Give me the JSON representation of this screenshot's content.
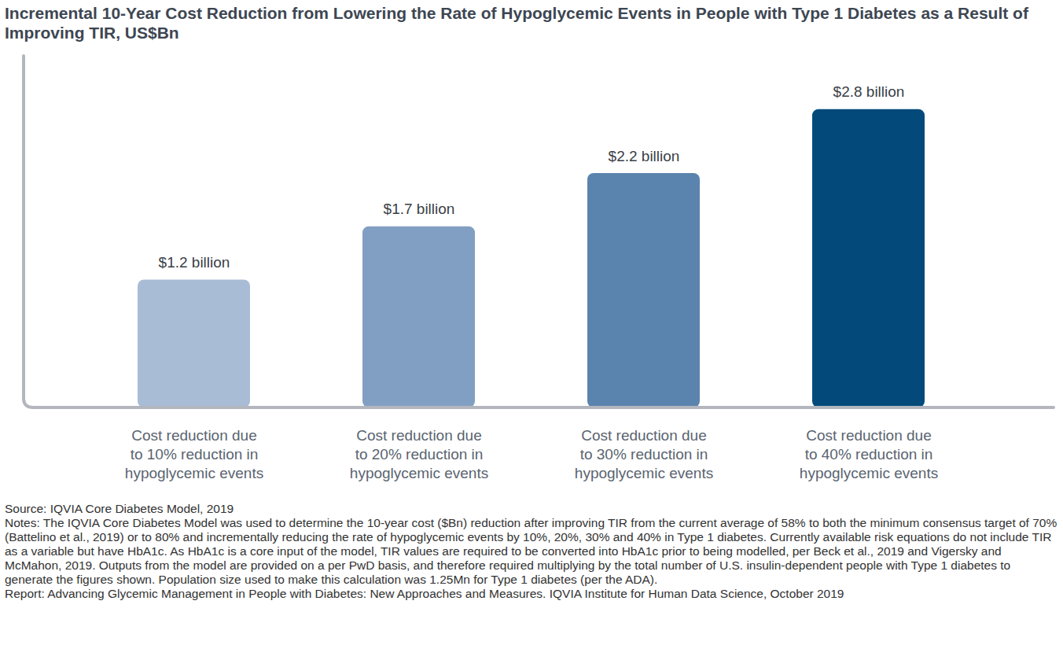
{
  "chart_data": {
    "type": "bar",
    "title": "Incremental 10-Year Cost Reduction from Lowering the Rate of Hypoglycemic Events in People with Type 1 Diabetes as a Result of Improving TIR, US$Bn",
    "categories": [
      "Cost reduction due to 10% reduction in hypoglycemic events",
      "Cost reduction due to 20% reduction in hypoglycemic events",
      "Cost reduction due to 30% reduction in hypoglycemic events",
      "Cost reduction due to 40% reduction in hypoglycemic events"
    ],
    "values": [
      1.2,
      1.7,
      2.2,
      2.8
    ],
    "value_labels": [
      "$1.2 billion",
      "$1.7 billion",
      "$2.2 billion",
      "$2.8 billion"
    ],
    "colors": [
      "#a9bcd6",
      "#819fc2",
      "#5a84ad",
      "#034a7b"
    ],
    "ylim": [
      0,
      3.3
    ],
    "data_labels": true,
    "tick_labels": "x",
    "grid": false,
    "source": "Source: IQVIA Core Diabetes Model, 2019",
    "notes": "Notes: The IQVIA Core Diabetes Model was used to determine the 10-year cost ($Bn) reduction after improving TIR from the current average of 58% to both the minimum consensus target of 70% (Battelino et al., 2019) or to 80% and incrementally reducing the rate of hypoglycemic events by 10%, 20%, 30% and 40% in Type 1 diabetes. Currently available risk equations do not include TIR as a variable but have HbA1c. As HbA1c is a core input of the model, TIR values are required to be converted into HbA1c prior to being modelled, per Beck et al., 2019 and Vigersky and McMahon, 2019. Outputs from the model are provided on a per PwD basis, and therefore required multiplying by the total number of U.S. insulin-dependent people with Type 1 diabetes to generate the figures shown. Population size used to make this calculation was 1.25Mn for Type 1 diabetes (per the ADA).",
    "report": "Report: Advancing Glycemic Management in People with Diabetes: New Approaches and Measures. IQVIA Institute for Human Data Science, October 2019"
  }
}
